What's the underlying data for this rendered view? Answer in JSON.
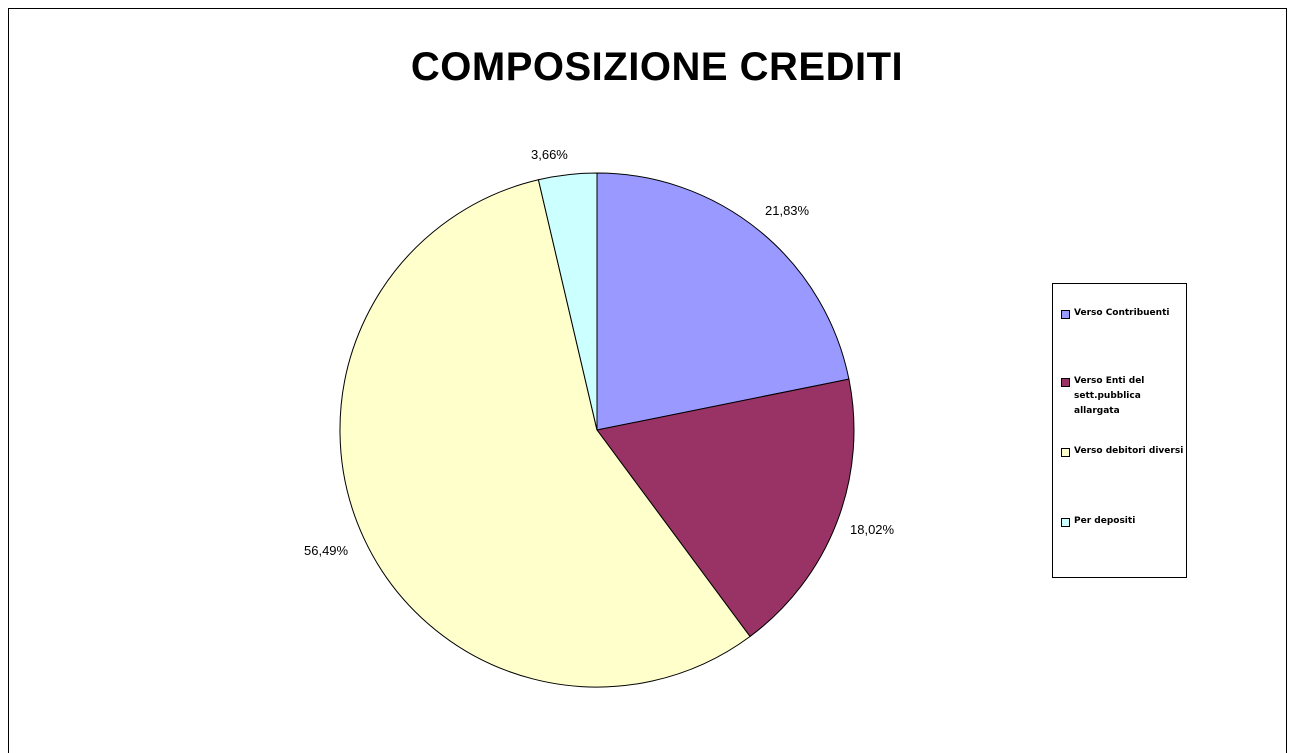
{
  "chart_data": {
    "type": "pie",
    "title": "COMPOSIZIONE CREDITI",
    "categories": [
      "Verso Contribuenti",
      "Verso Enti del sett.pubblica allargata",
      "Verso debitori diversi",
      "Per depositi"
    ],
    "values": [
      21.83,
      18.02,
      56.49,
      3.66
    ],
    "labels": [
      "21,83%",
      "18,02%",
      "56,49%",
      "3,66%"
    ],
    "colors": [
      "#9999ff",
      "#993366",
      "#ffffcc",
      "#ccffff"
    ],
    "start_angle": "12 o'clock",
    "direction": "clockwise",
    "legend_position": "right"
  },
  "legend": {
    "items": [
      {
        "label": "Verso Contribuenti",
        "color": "#9999ff"
      },
      {
        "label": "Verso Enti del sett.pubblica allargata",
        "color": "#993366"
      },
      {
        "label": "Verso debitori diversi",
        "color": "#ffffcc"
      },
      {
        "label": "Per depositi",
        "color": "#ccffff"
      }
    ]
  }
}
